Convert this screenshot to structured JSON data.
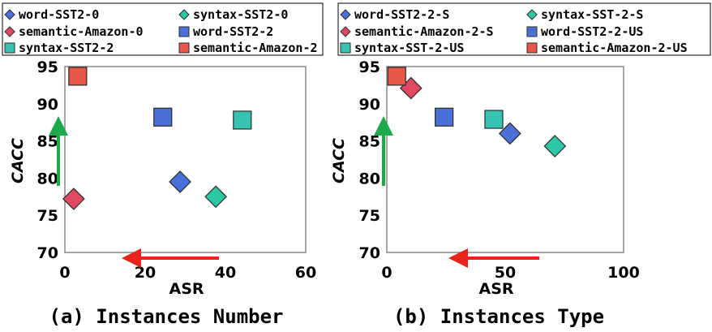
{
  "colors": {
    "word-0": "#4a6fd6",
    "syntax-0": "#2cc7a3",
    "semantic-0": "#e0495f",
    "word-2": "#4a6fd6",
    "syntax-2": "#37c3b1",
    "semantic-2": "#e9564a",
    "green_arrow": "#1daa4c",
    "red_arrow": "#e8231c"
  },
  "chart_data": [
    {
      "type": "scatter",
      "caption": "(a) Instances Number",
      "xlabel": "ASR",
      "ylabel": "CACC",
      "xlim": [
        0,
        60
      ],
      "ylim": [
        70,
        95
      ],
      "xticks": [
        "0",
        "20",
        "40",
        "60"
      ],
      "yticks": [
        "70",
        "75",
        "80",
        "85",
        "90",
        "95"
      ],
      "grid": false,
      "legend_position": "top",
      "series": [
        {
          "name": "word-SST2-0",
          "marker": "diamond",
          "color": "#4a6fd6",
          "x": 28.7,
          "y": 79.5
        },
        {
          "name": "syntax-SST2-0",
          "marker": "diamond",
          "color": "#2cc7a3",
          "x": 37.6,
          "y": 77.5
        },
        {
          "name": "semantic-Amazon-0",
          "marker": "diamond",
          "color": "#e0495f",
          "x": 2.2,
          "y": 77.2
        },
        {
          "name": "word-SST2-2",
          "marker": "square",
          "color": "#4a6fd6",
          "x": 24.4,
          "y": 88.2
        },
        {
          "name": "syntax-SST2-2",
          "marker": "square",
          "color": "#37c3b1",
          "x": 44.2,
          "y": 87.8
        },
        {
          "name": "semantic-Amazon-2",
          "marker": "square",
          "color": "#e9564a",
          "x": 3.2,
          "y": 93.7
        }
      ]
    },
    {
      "type": "scatter",
      "caption": "(b) Instances Type",
      "xlabel": "ASR",
      "ylabel": "CACC",
      "xlim": [
        0,
        100
      ],
      "ylim": [
        70,
        95
      ],
      "xticks": [
        "0",
        "50",
        "100"
      ],
      "yticks": [
        "70",
        "75",
        "80",
        "85",
        "90",
        "95"
      ],
      "grid": false,
      "legend_position": "top",
      "series": [
        {
          "name": "word-SST2-2-S",
          "marker": "diamond",
          "color": "#4a6fd6",
          "x": 52,
          "y": 86
        },
        {
          "name": "syntax-SST-2-S",
          "marker": "diamond",
          "color": "#2cc7a3",
          "x": 71,
          "y": 84.3
        },
        {
          "name": "semantic-Amazon-2-S",
          "marker": "diamond",
          "color": "#e0495f",
          "x": 10.2,
          "y": 92.1
        },
        {
          "name": "word-SST2-2-US",
          "marker": "square",
          "color": "#4a6fd6",
          "x": 24.2,
          "y": 88.2
        },
        {
          "name": "syntax-SST-2-US",
          "marker": "square",
          "color": "#37c3b1",
          "x": 45.2,
          "y": 87.9
        },
        {
          "name": "semantic-Amazon-2-US",
          "marker": "square",
          "color": "#e9564a",
          "x": 4.2,
          "y": 93.7
        }
      ]
    }
  ]
}
